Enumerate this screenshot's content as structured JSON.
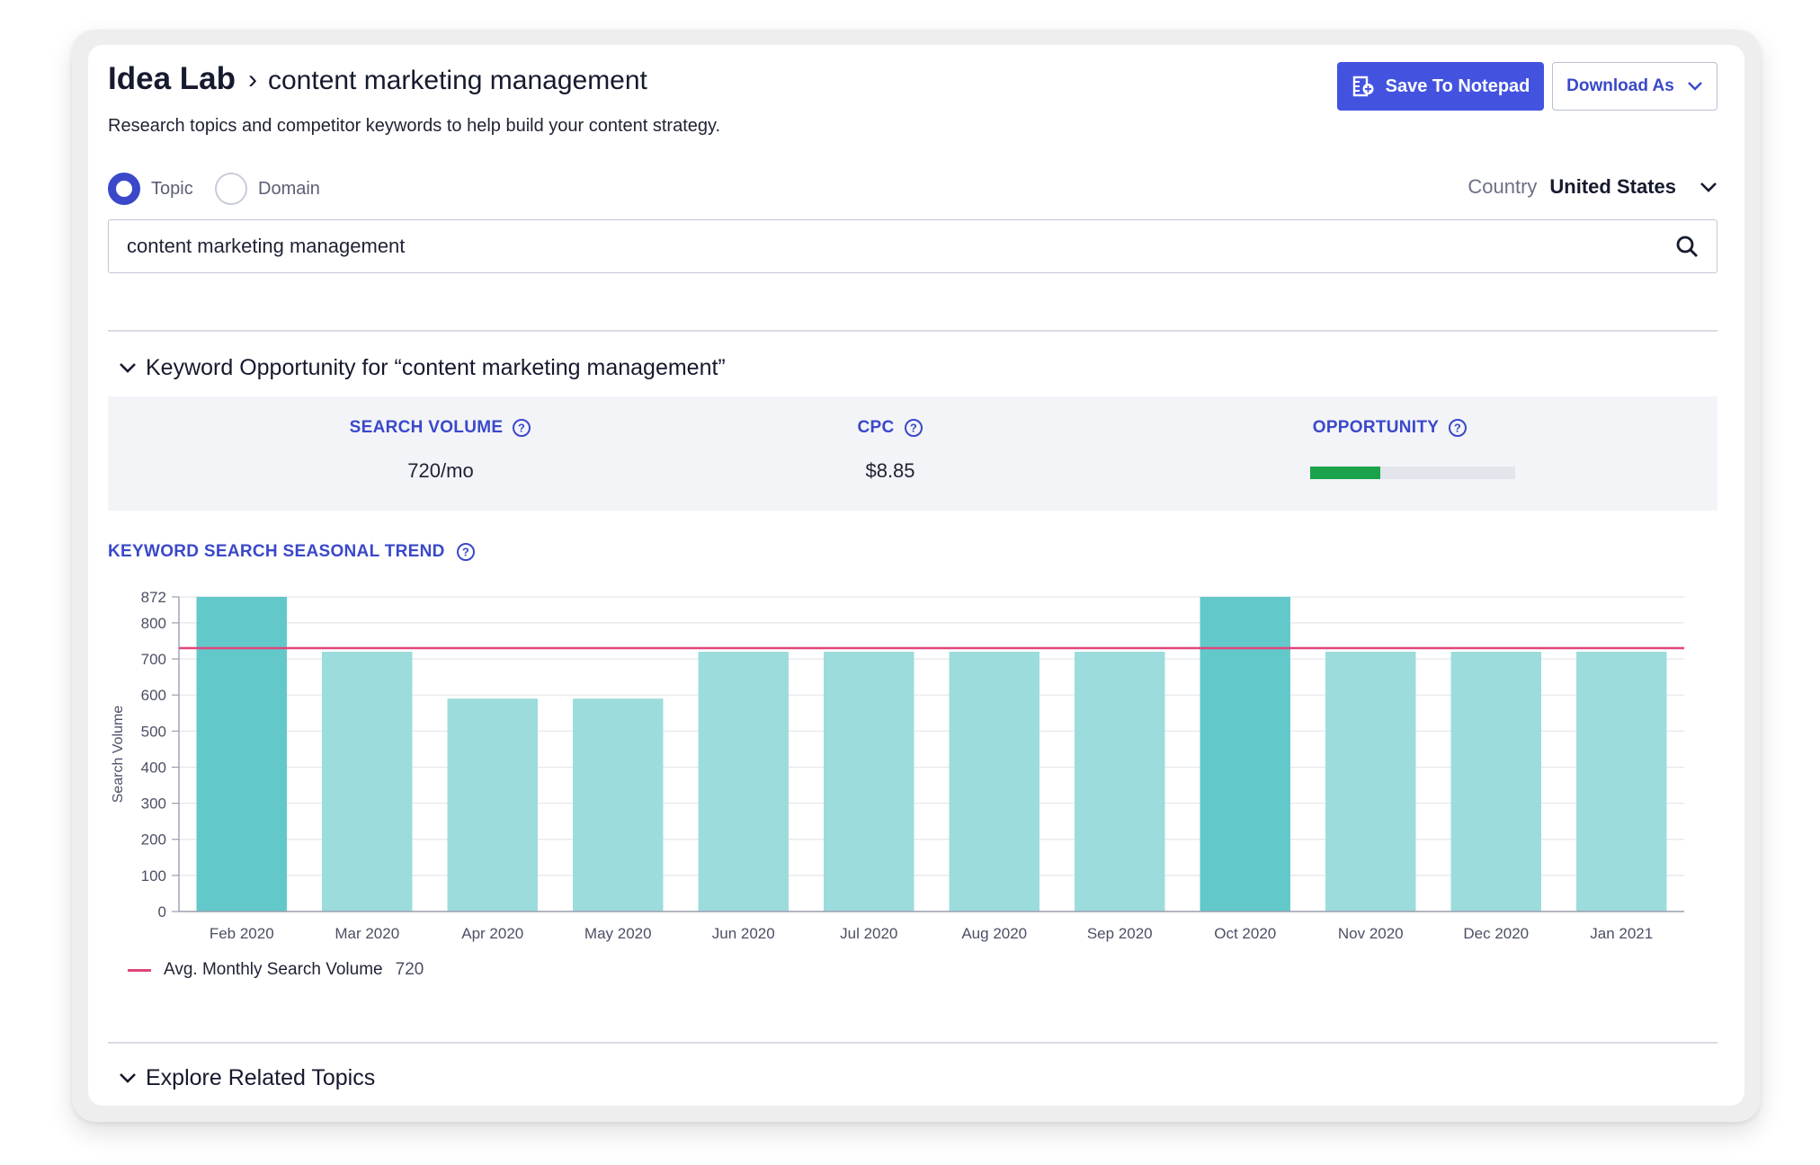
{
  "header": {
    "title": "Idea Lab",
    "breadcrumb_sep": "›",
    "crumb": "content marketing management",
    "subtitle": "Research topics and competitor keywords to help build your content strategy.",
    "save_label": "Save To Notepad",
    "download_label": "Download As"
  },
  "mode": {
    "options": [
      "Topic",
      "Domain"
    ],
    "selected": "Topic"
  },
  "country": {
    "label": "Country",
    "value": "United States"
  },
  "search": {
    "value": "content marketing management"
  },
  "opportunity_section": {
    "heading": "Keyword Opportunity for “content marketing management”",
    "metrics": [
      {
        "label": "SEARCH VOLUME",
        "value": "720/mo"
      },
      {
        "label": "CPC",
        "value": "$8.85"
      },
      {
        "label": "OPPORTUNITY",
        "fill_fraction": 0.34
      }
    ]
  },
  "trend": {
    "title": "KEYWORD SEARCH SEASONAL TREND"
  },
  "chart_data": {
    "type": "bar",
    "categories": [
      "Feb 2020",
      "Mar 2020",
      "Apr 2020",
      "May 2020",
      "Jun 2020",
      "Jul 2020",
      "Aug 2020",
      "Sep 2020",
      "Oct 2020",
      "Nov 2020",
      "Dec 2020",
      "Jan 2021"
    ],
    "values": [
      872,
      720,
      590,
      590,
      720,
      720,
      720,
      720,
      872,
      720,
      720,
      720
    ],
    "highlight": [
      true,
      false,
      false,
      false,
      false,
      false,
      false,
      false,
      true,
      false,
      false,
      false
    ],
    "ylabel": "Search Volume",
    "ylim": [
      0,
      872
    ],
    "yticks": [
      0,
      100,
      200,
      300,
      400,
      500,
      600,
      700,
      800,
      872
    ],
    "average": 720,
    "grid": true,
    "colors": {
      "bar": "#9cdcdc",
      "bar_highlight": "#62c8ca",
      "average_line": "#e0457b"
    }
  },
  "legend": {
    "label": "Avg. Monthly Search Volume",
    "value": "720"
  },
  "related": {
    "heading": "Explore Related Topics"
  },
  "colors": {
    "accent": "#3a48c9",
    "button": "#4353e0",
    "opportunity": "#1aa34a"
  }
}
